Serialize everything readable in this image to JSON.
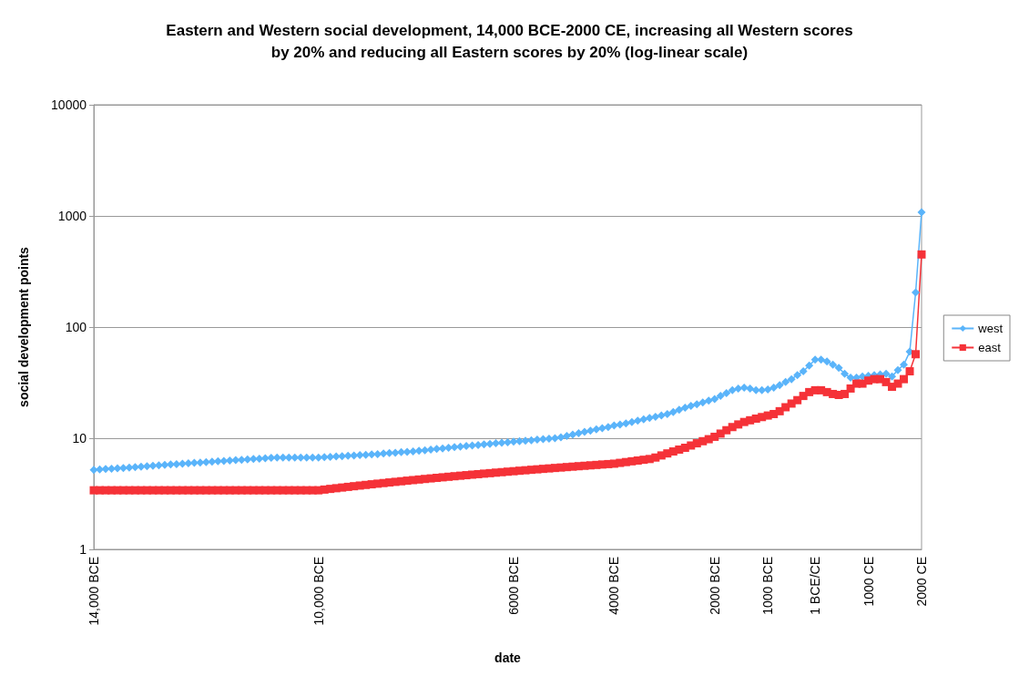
{
  "chart_data": {
    "type": "line",
    "title": "Eastern and Western social development, 14,000 BCE-2000 CE, increasing all Western scores\nby 20% and reducing all Eastern scores by 20% (log-linear scale)",
    "xlabel": "date",
    "ylabel": "social development points",
    "categories": [
      "14,000 BCE",
      null,
      null,
      null,
      null,
      null,
      null,
      null,
      null,
      null,
      null,
      null,
      null,
      null,
      null,
      null,
      null,
      null,
      null,
      null,
      null,
      null,
      null,
      null,
      null,
      null,
      null,
      null,
      null,
      null,
      null,
      null,
      null,
      null,
      null,
      null,
      null,
      null,
      "10,000 BCE",
      null,
      null,
      null,
      null,
      null,
      null,
      null,
      null,
      null,
      null,
      null,
      null,
      null,
      null,
      null,
      null,
      null,
      null,
      null,
      null,
      null,
      null,
      null,
      null,
      null,
      null,
      null,
      null,
      null,
      null,
      null,
      null,
      "6000 BCE",
      null,
      null,
      null,
      null,
      null,
      null,
      null,
      null,
      null,
      null,
      null,
      null,
      null,
      null,
      null,
      null,
      "4000 BCE",
      null,
      null,
      null,
      null,
      null,
      null,
      null,
      null,
      null,
      null,
      null,
      null,
      null,
      null,
      null,
      null,
      "2000 BCE",
      null,
      null,
      null,
      null,
      null,
      null,
      null,
      null,
      "1000 BCE",
      null,
      null,
      null,
      null,
      null,
      null,
      null,
      "1 BCE/CE",
      null,
      null,
      null,
      null,
      null,
      null,
      null,
      null,
      "1000 CE",
      null,
      null,
      null,
      null,
      null,
      null,
      null,
      null,
      "2000 CE"
    ],
    "series": [
      {
        "name": "west",
        "color": "#5ab4fa",
        "marker": "diamond",
        "values": [
          5.2,
          5.24,
          5.28,
          5.32,
          5.36,
          5.4,
          5.45,
          5.5,
          5.55,
          5.6,
          5.65,
          5.7,
          5.75,
          5.8,
          5.85,
          5.9,
          5.95,
          6.0,
          6.05,
          6.1,
          6.15,
          6.2,
          6.25,
          6.3,
          6.35,
          6.4,
          6.45,
          6.5,
          6.55,
          6.6,
          6.65,
          6.7,
          6.7,
          6.7,
          6.7,
          6.7,
          6.7,
          6.7,
          6.7,
          6.75,
          6.8,
          6.85,
          6.9,
          6.95,
          7.0,
          7.05,
          7.1,
          7.15,
          7.2,
          7.3,
          7.35,
          7.4,
          7.5,
          7.55,
          7.6,
          7.7,
          7.8,
          7.9,
          8.0,
          8.1,
          8.2,
          8.3,
          8.4,
          8.5,
          8.6,
          8.7,
          8.8,
          8.9,
          9.0,
          9.1,
          9.2,
          9.3,
          9.4,
          9.5,
          9.6,
          9.7,
          9.8,
          9.9,
          10,
          10.2,
          10.5,
          10.8,
          11.1,
          11.4,
          11.7,
          12,
          12.3,
          12.6,
          13,
          13.3,
          13.6,
          14,
          14.4,
          14.8,
          15.2,
          15.6,
          16,
          16.5,
          17.2,
          18,
          18.8,
          19.5,
          20.2,
          21,
          21.8,
          22.5,
          24,
          25.5,
          27,
          28,
          28.5,
          28,
          27,
          27,
          27.5,
          28.5,
          30,
          32,
          34,
          37,
          40,
          45,
          51,
          51,
          49,
          46,
          43,
          38,
          35,
          35,
          36,
          36.5,
          37,
          37.5,
          38,
          36,
          41,
          46,
          60,
          205,
          1080
        ]
      },
      {
        "name": "east",
        "color": "#f53238",
        "marker": "square",
        "values": [
          3.4,
          3.4,
          3.4,
          3.4,
          3.4,
          3.4,
          3.4,
          3.4,
          3.4,
          3.4,
          3.4,
          3.4,
          3.4,
          3.4,
          3.4,
          3.4,
          3.4,
          3.4,
          3.4,
          3.4,
          3.4,
          3.4,
          3.4,
          3.4,
          3.4,
          3.4,
          3.4,
          3.4,
          3.4,
          3.4,
          3.4,
          3.4,
          3.4,
          3.4,
          3.4,
          3.4,
          3.4,
          3.4,
          3.4,
          3.45,
          3.5,
          3.55,
          3.6,
          3.65,
          3.7,
          3.75,
          3.8,
          3.85,
          3.9,
          3.95,
          4.0,
          4.05,
          4.1,
          4.15,
          4.2,
          4.25,
          4.3,
          4.35,
          4.4,
          4.45,
          4.5,
          4.55,
          4.6,
          4.65,
          4.7,
          4.75,
          4.8,
          4.85,
          4.9,
          4.95,
          5.0,
          5.05,
          5.1,
          5.15,
          5.2,
          5.25,
          5.3,
          5.35,
          5.4,
          5.45,
          5.5,
          5.55,
          5.6,
          5.65,
          5.7,
          5.75,
          5.8,
          5.85,
          5.9,
          6.0,
          6.1,
          6.2,
          6.3,
          6.4,
          6.5,
          6.7,
          7.0,
          7.3,
          7.6,
          7.9,
          8.2,
          8.6,
          9.0,
          9.4,
          9.8,
          10.3,
          11,
          11.8,
          12.6,
          13.3,
          14,
          14.5,
          15,
          15.5,
          16,
          16.5,
          17.5,
          19,
          20.5,
          22,
          24,
          26,
          27,
          27,
          26,
          25,
          24.5,
          25,
          28,
          31,
          31,
          33,
          34,
          34,
          32,
          29,
          31,
          34,
          40,
          57,
          450
        ]
      }
    ],
    "log": "y",
    "ylim": [
      1,
      10000
    ],
    "yticks": [
      1,
      10,
      100,
      1000,
      10000
    ],
    "grid": "y",
    "legend": "right"
  }
}
